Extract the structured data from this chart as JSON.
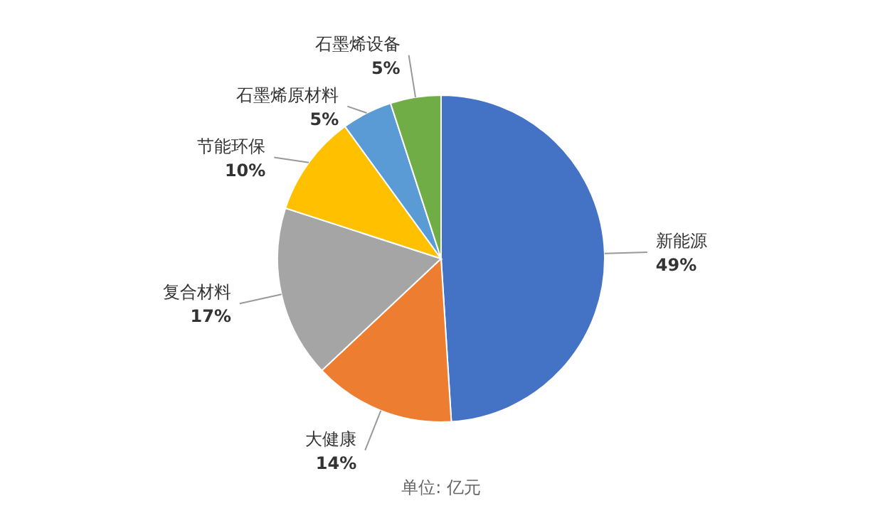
{
  "chart_data": {
    "type": "pie",
    "categories": [
      "新能源",
      "大健康",
      "复合材料",
      "节能环保",
      "石墨烯原材料",
      "石墨烯设备"
    ],
    "values": [
      49,
      14,
      17,
      10,
      5,
      5
    ],
    "value_labels": [
      "49%",
      "14%",
      "17%",
      "10%",
      "5%",
      "5%"
    ],
    "colors": [
      "#4472c4",
      "#ed7d31",
      "#a5a5a5",
      "#ffc000",
      "#5b9bd5",
      "#70ad47"
    ],
    "annotations": [
      "单位: 亿元"
    ]
  }
}
